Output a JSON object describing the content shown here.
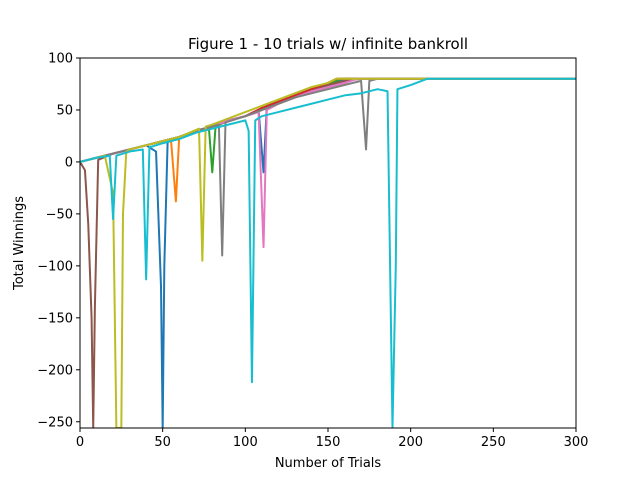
{
  "chart_data": {
    "type": "line",
    "title": "Figure 1 - 10 trials w/ infinite bankroll",
    "xlabel": "Number of Trials",
    "ylabel": "Total Winnings",
    "xlim": [
      0,
      300
    ],
    "ylim": [
      -256,
      100
    ],
    "xticks": [
      0,
      50,
      100,
      150,
      200,
      250,
      300
    ],
    "yticks": [
      100,
      50,
      0,
      -50,
      -100,
      -150,
      -200,
      -250
    ],
    "ytick_labels": [
      "100",
      "50",
      "0",
      "−50",
      "−100",
      "−150",
      "−200",
      "−250"
    ],
    "grid": false,
    "legend": "none",
    "series": [
      {
        "color": "#1f77b4",
        "values": [
          [
            0,
            0
          ],
          [
            10,
            4
          ],
          [
            20,
            8
          ],
          [
            30,
            12
          ],
          [
            40,
            16
          ],
          [
            46,
            10
          ],
          [
            49,
            -120
          ],
          [
            50,
            -256
          ],
          [
            51,
            -100
          ],
          [
            53,
            20
          ],
          [
            60,
            24
          ],
          [
            70,
            30
          ],
          [
            80,
            34
          ],
          [
            90,
            40
          ],
          [
            100,
            44
          ],
          [
            108,
            50
          ],
          [
            111,
            -10
          ],
          [
            113,
            54
          ],
          [
            120,
            58
          ],
          [
            130,
            64
          ],
          [
            140,
            70
          ],
          [
            150,
            74
          ],
          [
            160,
            80
          ],
          [
            300,
            80
          ]
        ]
      },
      {
        "color": "#ff7f0e",
        "values": [
          [
            0,
            0
          ],
          [
            10,
            4
          ],
          [
            20,
            8
          ],
          [
            30,
            12
          ],
          [
            40,
            16
          ],
          [
            50,
            20
          ],
          [
            55,
            22
          ],
          [
            58,
            -38
          ],
          [
            60,
            24
          ],
          [
            70,
            30
          ],
          [
            80,
            34
          ],
          [
            90,
            40
          ],
          [
            100,
            44
          ],
          [
            110,
            50
          ],
          [
            120,
            56
          ],
          [
            130,
            62
          ],
          [
            140,
            68
          ],
          [
            150,
            74
          ],
          [
            157,
            80
          ],
          [
            300,
            80
          ]
        ]
      },
      {
        "color": "#2ca02c",
        "values": [
          [
            0,
            0
          ],
          [
            10,
            4
          ],
          [
            20,
            8
          ],
          [
            30,
            12
          ],
          [
            40,
            16
          ],
          [
            50,
            20
          ],
          [
            60,
            24
          ],
          [
            70,
            30
          ],
          [
            78,
            32
          ],
          [
            80,
            -10
          ],
          [
            82,
            34
          ],
          [
            90,
            40
          ],
          [
            100,
            44
          ],
          [
            110,
            50
          ],
          [
            120,
            56
          ],
          [
            130,
            62
          ],
          [
            140,
            68
          ],
          [
            150,
            74
          ],
          [
            158,
            80
          ],
          [
            300,
            80
          ]
        ]
      },
      {
        "color": "#d62728",
        "values": [
          [
            0,
            0
          ],
          [
            10,
            4
          ],
          [
            20,
            8
          ],
          [
            30,
            12
          ],
          [
            40,
            16
          ],
          [
            50,
            20
          ],
          [
            60,
            24
          ],
          [
            70,
            30
          ],
          [
            80,
            34
          ],
          [
            90,
            40
          ],
          [
            100,
            44
          ],
          [
            110,
            52
          ],
          [
            120,
            58
          ],
          [
            130,
            64
          ],
          [
            140,
            70
          ],
          [
            150,
            76
          ],
          [
            155,
            80
          ],
          [
            300,
            80
          ]
        ]
      },
      {
        "color": "#9467bd",
        "values": [
          [
            0,
            0
          ],
          [
            10,
            4
          ],
          [
            20,
            8
          ],
          [
            30,
            12
          ],
          [
            40,
            16
          ],
          [
            50,
            20
          ],
          [
            60,
            24
          ],
          [
            70,
            30
          ],
          [
            80,
            34
          ],
          [
            90,
            40
          ],
          [
            100,
            44
          ],
          [
            110,
            50
          ],
          [
            120,
            56
          ],
          [
            130,
            62
          ],
          [
            140,
            68
          ],
          [
            150,
            72
          ],
          [
            160,
            76
          ],
          [
            165,
            80
          ],
          [
            300,
            80
          ]
        ]
      },
      {
        "color": "#8c564b",
        "values": [
          [
            0,
            0
          ],
          [
            3,
            -8
          ],
          [
            5,
            -60
          ],
          [
            7,
            -150
          ],
          [
            8,
            -256
          ],
          [
            9,
            -140
          ],
          [
            11,
            2
          ],
          [
            20,
            8
          ],
          [
            30,
            12
          ],
          [
            40,
            16
          ],
          [
            50,
            20
          ],
          [
            60,
            24
          ],
          [
            70,
            30
          ],
          [
            80,
            34
          ],
          [
            90,
            40
          ],
          [
            100,
            44
          ],
          [
            110,
            50
          ],
          [
            120,
            56
          ],
          [
            130,
            62
          ],
          [
            140,
            68
          ],
          [
            150,
            74
          ],
          [
            160,
            78
          ],
          [
            170,
            80
          ],
          [
            300,
            80
          ]
        ]
      },
      {
        "color": "#e377c2",
        "values": [
          [
            0,
            0
          ],
          [
            10,
            4
          ],
          [
            20,
            8
          ],
          [
            30,
            12
          ],
          [
            40,
            16
          ],
          [
            50,
            20
          ],
          [
            60,
            24
          ],
          [
            70,
            30
          ],
          [
            80,
            34
          ],
          [
            90,
            40
          ],
          [
            100,
            44
          ],
          [
            108,
            48
          ],
          [
            111,
            -82
          ],
          [
            113,
            50
          ],
          [
            120,
            56
          ],
          [
            130,
            62
          ],
          [
            140,
            68
          ],
          [
            150,
            72
          ],
          [
            160,
            76
          ],
          [
            168,
            80
          ],
          [
            300,
            80
          ]
        ]
      },
      {
        "color": "#7f7f7f",
        "values": [
          [
            0,
            0
          ],
          [
            10,
            4
          ],
          [
            20,
            8
          ],
          [
            30,
            12
          ],
          [
            40,
            16
          ],
          [
            50,
            20
          ],
          [
            60,
            24
          ],
          [
            70,
            30
          ],
          [
            80,
            34
          ],
          [
            84,
            36
          ],
          [
            86,
            -90
          ],
          [
            88,
            38
          ],
          [
            100,
            44
          ],
          [
            110,
            50
          ],
          [
            120,
            56
          ],
          [
            130,
            62
          ],
          [
            140,
            66
          ],
          [
            150,
            70
          ],
          [
            160,
            74
          ],
          [
            170,
            78
          ],
          [
            173,
            12
          ],
          [
            175,
            78
          ],
          [
            180,
            80
          ],
          [
            300,
            80
          ]
        ]
      },
      {
        "color": "#bcbd22",
        "values": [
          [
            0,
            0
          ],
          [
            10,
            4
          ],
          [
            15,
            6
          ],
          [
            20,
            -30
          ],
          [
            22,
            -256
          ],
          [
            25,
            -256
          ],
          [
            26,
            -50
          ],
          [
            28,
            10
          ],
          [
            30,
            12
          ],
          [
            40,
            16
          ],
          [
            50,
            20
          ],
          [
            60,
            24
          ],
          [
            72,
            32
          ],
          [
            74,
            -95
          ],
          [
            76,
            34
          ],
          [
            80,
            36
          ],
          [
            90,
            42
          ],
          [
            100,
            48
          ],
          [
            110,
            54
          ],
          [
            120,
            60
          ],
          [
            130,
            66
          ],
          [
            140,
            72
          ],
          [
            150,
            76
          ],
          [
            155,
            80
          ],
          [
            300,
            80
          ]
        ]
      },
      {
        "color": "#17becf",
        "values": [
          [
            0,
            0
          ],
          [
            10,
            4
          ],
          [
            18,
            6
          ],
          [
            20,
            -55
          ],
          [
            22,
            6
          ],
          [
            30,
            10
          ],
          [
            38,
            12
          ],
          [
            40,
            -113
          ],
          [
            42,
            14
          ],
          [
            50,
            18
          ],
          [
            60,
            22
          ],
          [
            70,
            28
          ],
          [
            80,
            32
          ],
          [
            90,
            36
          ],
          [
            100,
            40
          ],
          [
            102,
            30
          ],
          [
            104,
            -212
          ],
          [
            106,
            40
          ],
          [
            110,
            44
          ],
          [
            120,
            48
          ],
          [
            130,
            52
          ],
          [
            140,
            56
          ],
          [
            150,
            60
          ],
          [
            160,
            64
          ],
          [
            170,
            66
          ],
          [
            180,
            70
          ],
          [
            186,
            68
          ],
          [
            189,
            -256
          ],
          [
            191,
            -100
          ],
          [
            192,
            70
          ],
          [
            200,
            74
          ],
          [
            210,
            80
          ],
          [
            300,
            80
          ]
        ]
      }
    ]
  }
}
